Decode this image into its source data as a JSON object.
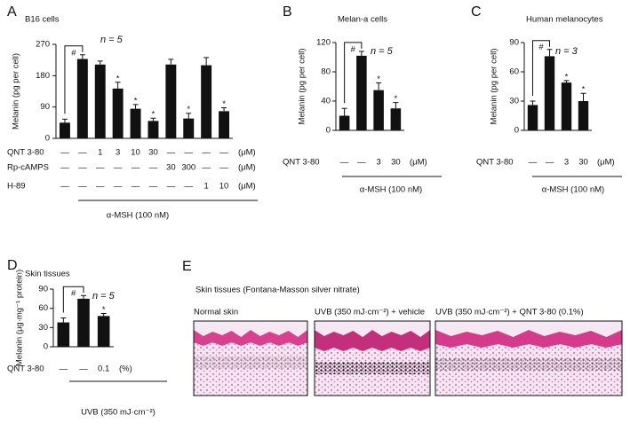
{
  "chart_data": [
    {
      "type": "bar",
      "letter": "A",
      "title": "B16 cells",
      "ylabel": "Melanin (pg per cell)",
      "ylim": [
        0,
        270
      ],
      "yticks": [
        0,
        90,
        180,
        270
      ],
      "color": "#111111",
      "values": [
        45,
        228,
        212,
        143,
        85,
        50,
        212,
        57,
        210,
        78
      ],
      "errors": [
        10,
        12,
        10,
        18,
        12,
        8,
        15,
        15,
        22,
        10
      ],
      "asterisk": "*",
      "asterisk_bars": [
        3,
        4,
        5,
        7,
        9
      ],
      "bracket": "#",
      "n_label": "n = 5",
      "rows": [
        {
          "label": "QNT 3-80",
          "cells": [
            "—",
            "—",
            "1",
            "3",
            "10",
            "30",
            "—",
            "—",
            "—",
            "—"
          ],
          "unit": "(μM)"
        },
        {
          "label": "Rp-cAMPS",
          "cells": [
            "—",
            "—",
            "—",
            "—",
            "—",
            "—",
            "30",
            "300",
            "—",
            "—"
          ],
          "unit": "(μM)"
        },
        {
          "label": "H-89",
          "cells": [
            "—",
            "—",
            "—",
            "—",
            "—",
            "—",
            "—",
            "—",
            "1",
            "10"
          ],
          "unit": "(μM)"
        }
      ],
      "group_label": "α-MSH (100 nM)"
    },
    {
      "type": "bar",
      "letter": "B",
      "title": "Melan-a cells",
      "ylabel": "Melanin (pg per cell)",
      "ylim": [
        0,
        120
      ],
      "yticks": [
        0,
        40,
        80,
        120
      ],
      "color": "#111111",
      "values": [
        20,
        102,
        55,
        30
      ],
      "errors": [
        10,
        6,
        10,
        8
      ],
      "asterisk": "*",
      "asterisk_bars": [
        2,
        3
      ],
      "bracket": "#",
      "n_label": "n = 5",
      "rows": [
        {
          "label": "QNT 3-80",
          "cells": [
            "—",
            "—",
            "3",
            "30"
          ],
          "unit": "(μM)"
        }
      ],
      "group_label": "α-MSH (100 nM)"
    },
    {
      "type": "bar",
      "letter": "C",
      "title": "Human melanocytes",
      "ylabel": "Melanin (pg per cell)",
      "ylim": [
        0,
        90
      ],
      "yticks": [
        0,
        30,
        60,
        90
      ],
      "color": "#111111",
      "values": [
        26,
        76,
        49,
        30
      ],
      "errors": [
        4,
        7,
        2,
        8
      ],
      "asterisk": "*",
      "asterisk_bars": [
        2,
        3
      ],
      "bracket": "#",
      "n_label": "n = 3",
      "rows": [
        {
          "label": "QNT 3-80",
          "cells": [
            "—",
            "—",
            "3",
            "30"
          ],
          "unit": "(μM)"
        }
      ],
      "group_label": "α-MSH (100 nM)"
    },
    {
      "type": "bar",
      "letter": "D",
      "title": "Skin tissues",
      "ylabel": "Melanin (μg·mg⁻¹ protein)",
      "ylim": [
        0,
        90
      ],
      "yticks": [
        0,
        30,
        60,
        90
      ],
      "color": "#111111",
      "values": [
        38,
        75,
        48
      ],
      "errors": [
        7,
        5,
        4
      ],
      "asterisk": "*",
      "asterisk_bars": [
        2
      ],
      "bracket": "#",
      "n_label": "n = 5",
      "rows": [
        {
          "label": "QNT 3-80",
          "cells": [
            "—",
            "—",
            "0.1"
          ],
          "unit": "(%)"
        }
      ],
      "group_label": "UVB (350 mJ·cm⁻²)"
    }
  ],
  "panel_e": {
    "letter": "E",
    "title": "Skin tissues (Fontana-Masson silver nitrate)",
    "images": [
      "Normal skin",
      "UVB (350 mJ·cm⁻²) + vehicle",
      "UVB (350 mJ·cm⁻²) + QNT 3-80 (0.1%)"
    ]
  }
}
